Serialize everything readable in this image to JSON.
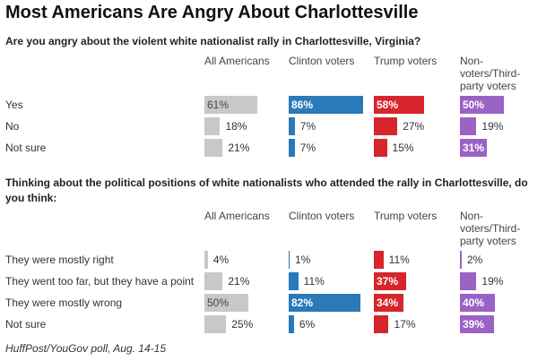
{
  "title": "Most Americans Are Angry About Charlottesville",
  "chart_data": [
    {
      "type": "bar",
      "title": "Are you angry about the violent white nationalist rally in Charlottesville, Virginia?",
      "categories": [
        "Yes",
        "No",
        "Not sure"
      ],
      "series": [
        {
          "name": "All Americans",
          "color": "#c8c8c8",
          "values": [
            61,
            18,
            21
          ],
          "value_labels": [
            "61%",
            "18%",
            "21%"
          ]
        },
        {
          "name": "Clinton voters",
          "color": "#2a7ab9",
          "values": [
            86,
            7,
            7
          ],
          "value_labels": [
            "86%",
            "7%",
            "7%"
          ]
        },
        {
          "name": "Trump voters",
          "color": "#d7262b",
          "values": [
            58,
            27,
            15
          ],
          "value_labels": [
            "58%",
            "27%",
            "15%"
          ]
        },
        {
          "name": "Non-voters/Third-party voters",
          "color": "#9b62c6",
          "values": [
            50,
            19,
            31
          ],
          "value_labels": [
            "50%",
            "19%",
            "31%"
          ]
        }
      ]
    },
    {
      "type": "bar",
      "title": "Thinking about the political positions of white nationalists who attended the rally in Charlottesville, do you think:",
      "categories": [
        "They were mostly right",
        "They went too far, but they have a point",
        "They were mostly wrong",
        "Not sure"
      ],
      "series": [
        {
          "name": "All Americans",
          "color": "#c8c8c8",
          "values": [
            4,
            21,
            50,
            25
          ],
          "value_labels": [
            "4%",
            "21%",
            "50%",
            "25%"
          ]
        },
        {
          "name": "Clinton voters",
          "color": "#2a7ab9",
          "values": [
            1,
            11,
            82,
            6
          ],
          "value_labels": [
            "1%",
            "11%",
            "82%",
            "6%"
          ]
        },
        {
          "name": "Trump voters",
          "color": "#d7262b",
          "values": [
            11,
            37,
            34,
            17
          ],
          "value_labels": [
            "11%",
            "37%",
            "34%",
            "17%"
          ]
        },
        {
          "name": "Non-voters/Third-party voters",
          "color": "#9b62c6",
          "values": [
            2,
            19,
            40,
            39
          ],
          "value_labels": [
            "2%",
            "19%",
            "40%",
            "39%"
          ]
        }
      ]
    }
  ],
  "source": "HuffPost/YouGov poll, Aug. 14-15"
}
